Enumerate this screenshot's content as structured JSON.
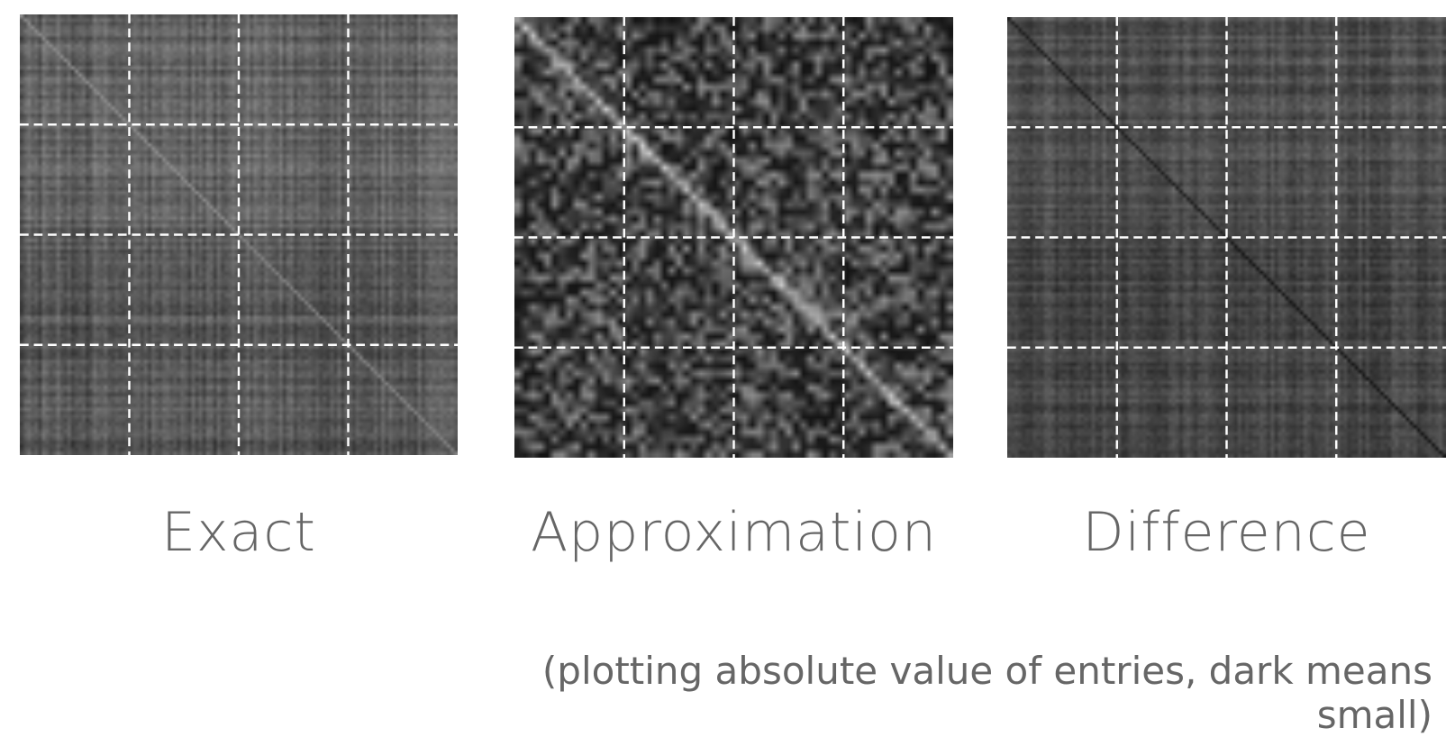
{
  "panels": [
    {
      "id": "exact",
      "label": "Exact",
      "style": "smooth"
    },
    {
      "id": "approx",
      "label": "Approximation",
      "style": "noisy"
    },
    {
      "id": "diff",
      "label": "Difference",
      "style": "smooth-dark"
    }
  ],
  "note": "(plotting absolute value of entries, dark means small)",
  "colors": {
    "background": "#ffffff",
    "caption": "#666666",
    "grid_lines": "#ffffff"
  }
}
